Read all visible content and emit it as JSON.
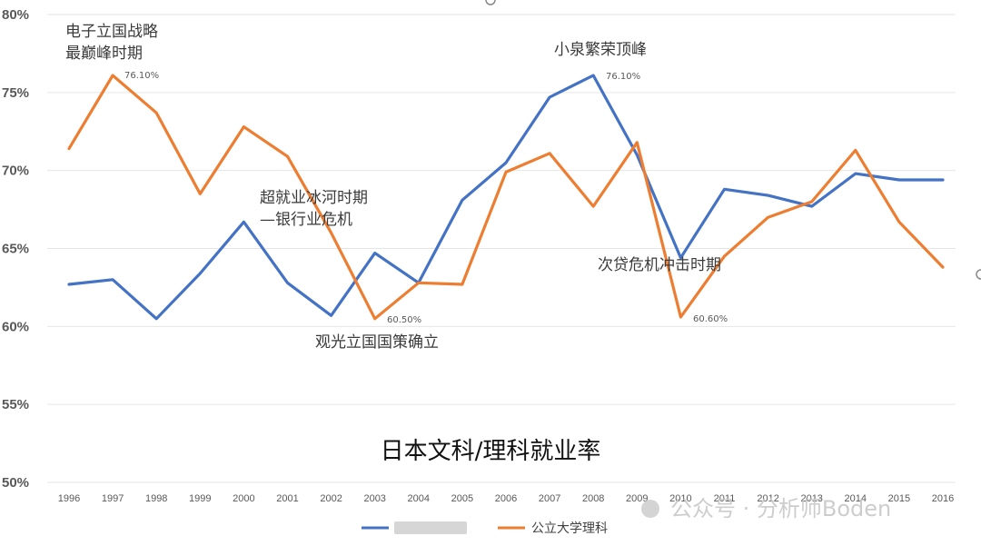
{
  "chart_data": {
    "type": "line",
    "title": "日本文科/理科就业率",
    "ylim": [
      0.5,
      0.8
    ],
    "yticks": [
      "50%",
      "55%",
      "60%",
      "65%",
      "70%",
      "75%",
      "80%"
    ],
    "categories": [
      "1996",
      "1997",
      "1998",
      "1999",
      "2000",
      "2001",
      "2002",
      "2003",
      "2004",
      "2005",
      "2006",
      "2007",
      "2008",
      "2009",
      "2010",
      "2011",
      "2012",
      "2013",
      "2014",
      "2015",
      "2016"
    ],
    "series": [
      {
        "name": "",
        "color": "#4472c4",
        "values": [
          0.627,
          0.63,
          0.605,
          0.634,
          0.667,
          0.628,
          0.607,
          0.647,
          0.628,
          0.681,
          0.705,
          0.747,
          0.761,
          0.71,
          0.644,
          0.688,
          0.684,
          0.677,
          0.698,
          0.694,
          0.694
        ]
      },
      {
        "name": "公立大学理科",
        "color": "#ed7d31",
        "values": [
          0.714,
          0.761,
          0.737,
          0.685,
          0.728,
          0.709,
          0.66,
          0.605,
          0.628,
          0.627,
          0.699,
          0.711,
          0.677,
          0.718,
          0.606,
          0.645,
          0.67,
          0.68,
          0.713,
          0.667,
          0.638
        ]
      }
    ],
    "annotations": [
      {
        "lines": [
          "电子立国战略",
          "最巅峰时期"
        ]
      },
      {
        "lines": [
          "超就业冰河时期",
          "—银行业危机"
        ]
      },
      {
        "lines": [
          "观光立国国策确立"
        ]
      },
      {
        "lines": [
          "小泉繁荣顶峰"
        ]
      },
      {
        "lines": [
          "次贷危机冲击时期"
        ]
      }
    ],
    "data_labels": [
      "76.10%",
      "60.50%",
      "76.10%",
      "60.60%"
    ],
    "watermark": "公众号 · 分析师Boden"
  }
}
